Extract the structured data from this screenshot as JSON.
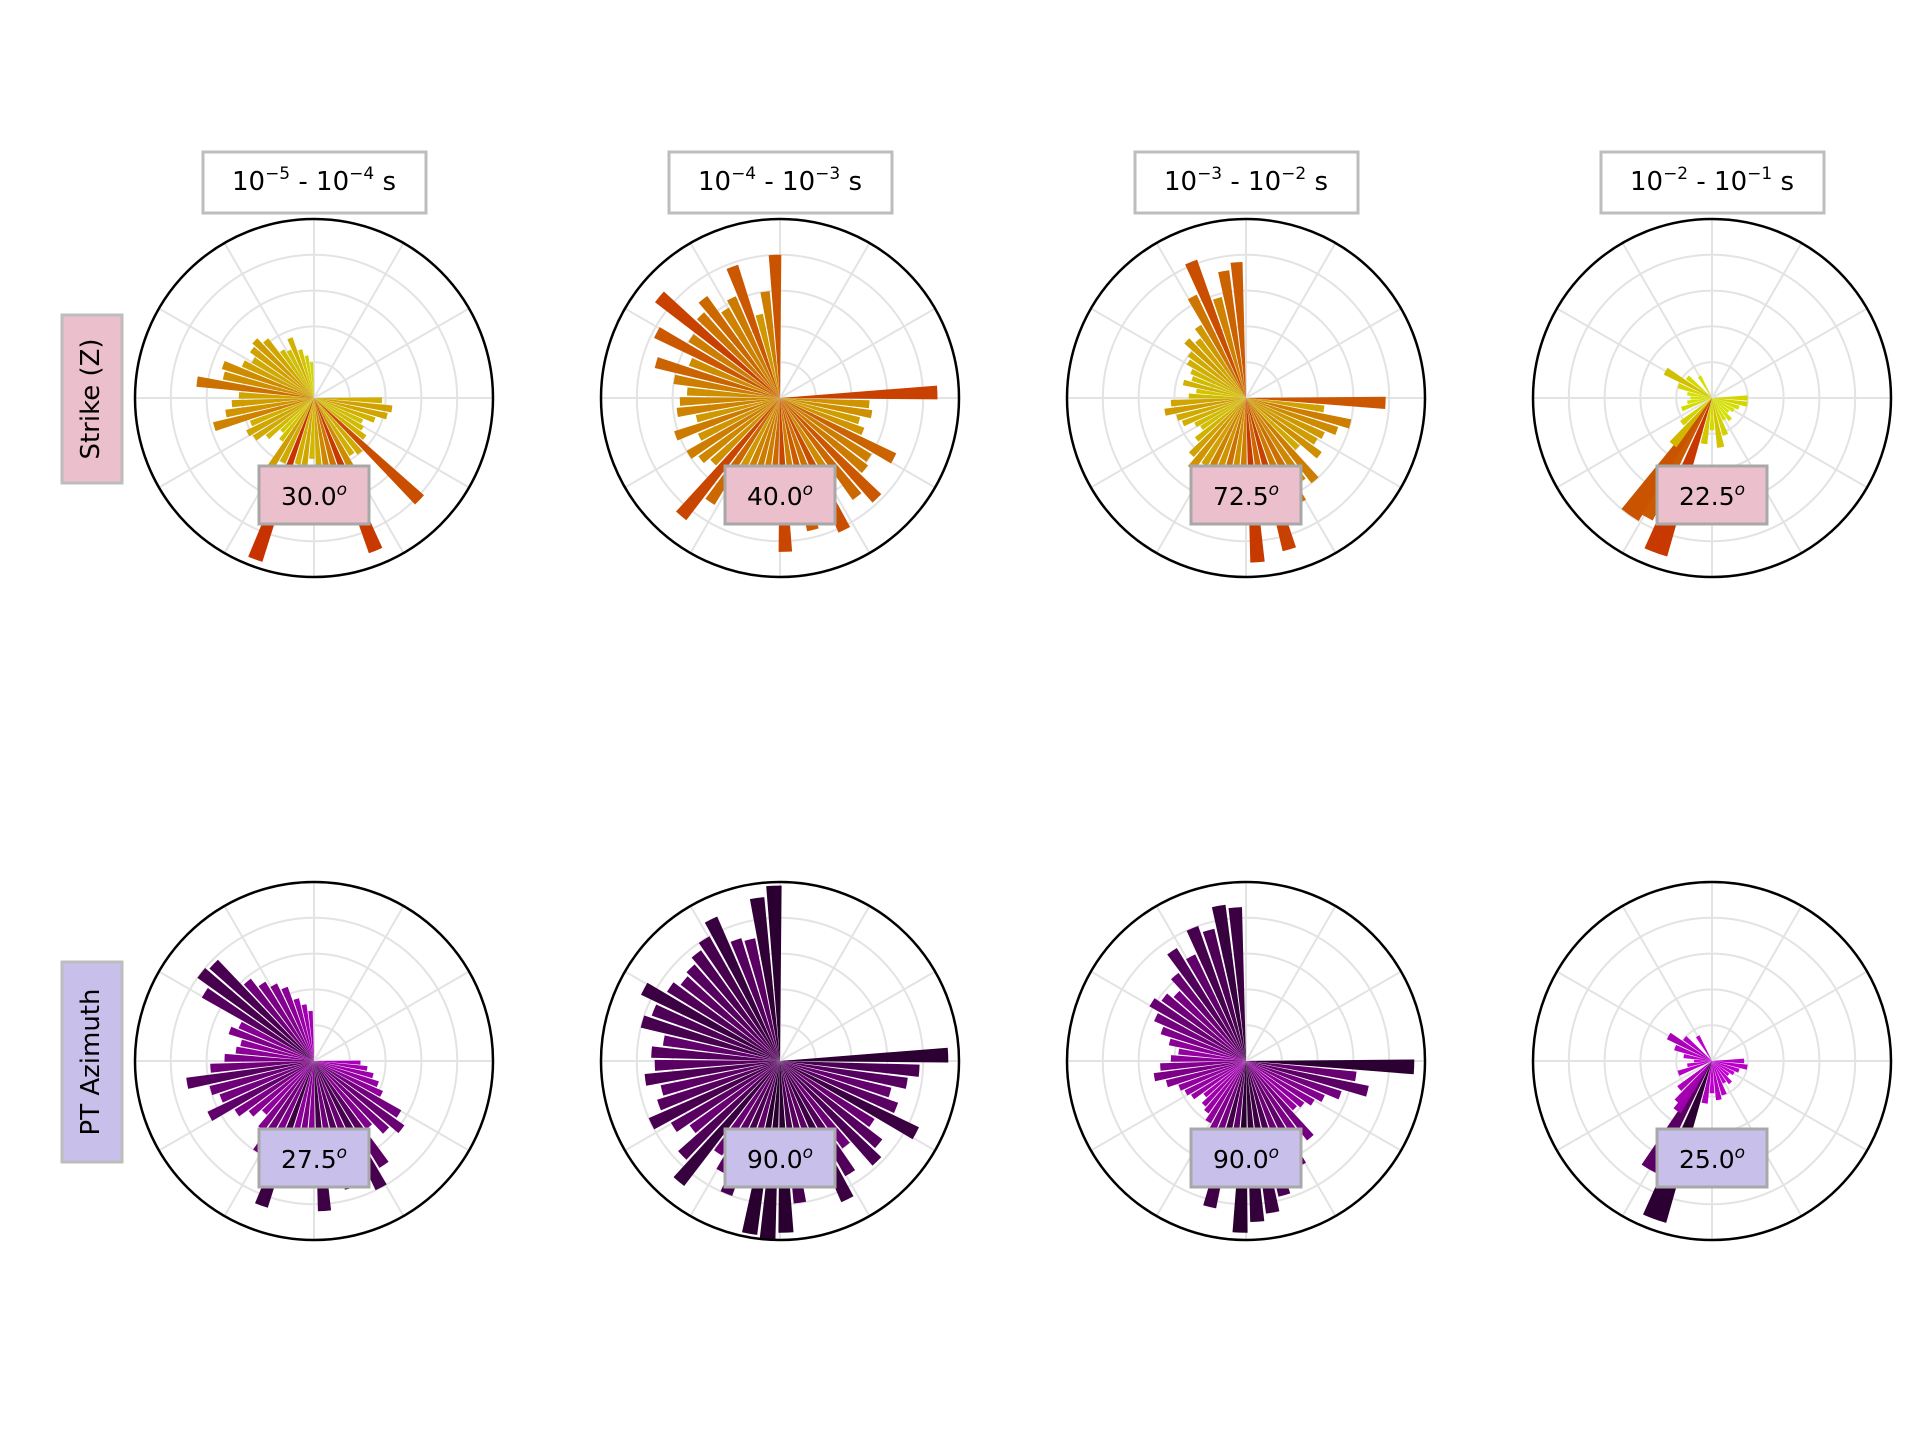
{
  "figure": {
    "column_titles": [
      {
        "base1": "10",
        "exp1": "−5",
        "sep": " - ",
        "base2": "10",
        "exp2": "−4",
        "unit": " s"
      },
      {
        "base1": "10",
        "exp1": "−4",
        "sep": " - ",
        "base2": "10",
        "exp2": "−3",
        "unit": " s"
      },
      {
        "base1": "10",
        "exp1": "−3",
        "sep": " - ",
        "base2": "10",
        "exp2": "−2",
        "unit": " s"
      },
      {
        "base1": "10",
        "exp1": "−2",
        "sep": " - ",
        "base2": "10",
        "exp2": "−1",
        "unit": " s"
      }
    ],
    "row_labels": [
      "Strike (Z)",
      "PT Azimuth"
    ],
    "colors": {
      "strike_label_bg": "#ebbfcc",
      "azimuth_label_bg": "#c8bfea",
      "strike_low": "#d4e000",
      "strike_high": "#c83200",
      "azimuth_low": "#c000d0",
      "azimuth_high": "#2a0030"
    }
  },
  "chart_data": [
    {
      "type": "rose",
      "row": "Strike (Z)",
      "period": "10^-5 - 10^-4 s",
      "median_label": "30.0",
      "median_unit": "o",
      "rmax": 1.0,
      "theta_deg": [
        92,
        98,
        104,
        110,
        116,
        122,
        128,
        134,
        140,
        146,
        152,
        158,
        164,
        170,
        176,
        182,
        188,
        194,
        200,
        206,
        212,
        218,
        224,
        230,
        236,
        242,
        248,
        254,
        260,
        266,
        272,
        278,
        284,
        290,
        296,
        302,
        308,
        314,
        320,
        326,
        332,
        338,
        344,
        350,
        356
      ],
      "values": [
        0.38,
        0.44,
        0.42,
        0.36,
        0.3,
        0.32,
        0.36,
        0.82,
        0.4,
        0.38,
        0.54,
        0.92,
        0.64,
        0.56,
        0.4,
        0.34,
        0.42,
        0.38,
        0.96,
        0.4,
        0.46,
        0.3,
        0.26,
        0.34,
        0.4,
        0.42,
        0.38,
        0.58,
        0.5,
        0.46,
        0.42,
        0.66,
        0.52,
        0.54,
        0.44,
        0.4,
        0.44,
        0.46,
        0.42,
        0.32,
        0.3,
        0.36,
        0.28,
        0.24,
        0.2
      ]
    },
    {
      "type": "rose",
      "row": "Strike (Z)",
      "period": "10^-4 - 10^-3 s",
      "median_label": "40.0",
      "median_unit": "o",
      "rmax": 1.0,
      "theta_deg": [
        88,
        94,
        100,
        106,
        112,
        118,
        124,
        130,
        136,
        142,
        148,
        154,
        160,
        166,
        172,
        178,
        184,
        190,
        196,
        202,
        208,
        214,
        220,
        226,
        232,
        238,
        244,
        250,
        256,
        262,
        268,
        274,
        280,
        286,
        292,
        298,
        304,
        310,
        316,
        322,
        328,
        334,
        340,
        346,
        352,
        358
      ],
      "values": [
        0.88,
        0.5,
        0.52,
        0.46,
        0.5,
        0.72,
        0.6,
        0.62,
        0.78,
        0.7,
        0.54,
        0.82,
        0.66,
        0.76,
        0.6,
        0.86,
        0.7,
        0.6,
        0.62,
        0.58,
        0.48,
        0.7,
        0.86,
        0.52,
        0.56,
        0.6,
        0.5,
        0.62,
        0.48,
        0.58,
        0.56,
        0.52,
        0.6,
        0.72,
        0.54,
        0.78,
        0.6,
        0.88,
        0.64,
        0.7,
        0.58,
        0.62,
        0.78,
        0.48,
        0.6,
        0.8
      ]
    },
    {
      "type": "rose",
      "row": "Strike (Z)",
      "period": "10^-3 - 10^-2 s",
      "median_label": "72.5",
      "median_unit": "o",
      "rmax": 1.0,
      "theta_deg": [
        92,
        98,
        104,
        110,
        116,
        122,
        128,
        134,
        140,
        146,
        152,
        158,
        164,
        170,
        176,
        182,
        188,
        194,
        200,
        206,
        212,
        218,
        224,
        230,
        236,
        242,
        248,
        254,
        260,
        266,
        272,
        278,
        284,
        290,
        296,
        302,
        308,
        314,
        320,
        326,
        332,
        338,
        344,
        350,
        356
      ],
      "values": [
        0.78,
        0.44,
        0.6,
        0.54,
        0.48,
        0.46,
        0.52,
        0.4,
        0.6,
        0.56,
        0.66,
        0.62,
        0.88,
        0.7,
        0.92,
        0.6,
        0.52,
        0.66,
        0.5,
        0.58,
        0.44,
        0.5,
        0.44,
        0.36,
        0.3,
        0.32,
        0.38,
        0.4,
        0.46,
        0.42,
        0.32,
        0.28,
        0.36,
        0.32,
        0.34,
        0.38,
        0.4,
        0.46,
        0.42,
        0.48,
        0.64,
        0.82,
        0.58,
        0.72,
        0.76
      ]
    },
    {
      "type": "rose",
      "row": "Strike (Z)",
      "period": "10^-2 - 10^-1 s",
      "median_label": "22.5",
      "median_unit": "o",
      "rmax": 1.0,
      "theta_deg": [
        90,
        100,
        110,
        120,
        130,
        140,
        150,
        160,
        170,
        180,
        190,
        200,
        210,
        215,
        220,
        230,
        250,
        260,
        270,
        280,
        290,
        300,
        310,
        330
      ],
      "values": [
        0.2,
        0.2,
        0.16,
        0.14,
        0.12,
        0.16,
        0.14,
        0.22,
        0.28,
        0.18,
        0.26,
        0.92,
        0.76,
        0.8,
        0.34,
        0.22,
        0.18,
        0.14,
        0.12,
        0.14,
        0.2,
        0.3,
        0.18,
        0.14
      ]
    },
    {
      "type": "rose",
      "row": "PT Azimuth",
      "period": "10^-5 - 10^-4 s",
      "median_label": "27.5",
      "median_unit": "o",
      "rmax": 1.0,
      "theta_deg": [
        92,
        98,
        104,
        110,
        116,
        122,
        128,
        134,
        140,
        146,
        152,
        158,
        164,
        170,
        176,
        182,
        188,
        194,
        200,
        206,
        212,
        218,
        224,
        230,
        236,
        242,
        248,
        254,
        260,
        266,
        272,
        278,
        284,
        290,
        296,
        302,
        308,
        314,
        320,
        326,
        332,
        338,
        344,
        350,
        356
      ],
      "values": [
        0.26,
        0.3,
        0.34,
        0.38,
        0.42,
        0.56,
        0.62,
        0.56,
        0.48,
        0.7,
        0.8,
        0.62,
        0.74,
        0.58,
        0.84,
        0.46,
        0.52,
        0.42,
        0.86,
        0.5,
        0.6,
        0.48,
        0.4,
        0.46,
        0.52,
        0.66,
        0.56,
        0.6,
        0.72,
        0.58,
        0.5,
        0.44,
        0.42,
        0.5,
        0.46,
        0.72,
        0.8,
        0.78,
        0.58,
        0.52,
        0.48,
        0.44,
        0.36,
        0.32,
        0.28
      ]
    },
    {
      "type": "rose",
      "row": "PT Azimuth",
      "period": "10^-4 - 10^-3 s",
      "median_label": "90.0",
      "median_unit": "o",
      "rmax": 1.0,
      "theta_deg": [
        88,
        94,
        100,
        106,
        112,
        118,
        124,
        130,
        136,
        142,
        148,
        154,
        160,
        166,
        172,
        178,
        184,
        190,
        196,
        202,
        208,
        214,
        220,
        226,
        232,
        238,
        244,
        250,
        256,
        262,
        268,
        274,
        280,
        286,
        292,
        298,
        304,
        310,
        316,
        322,
        328,
        334,
        340,
        346,
        352,
        358
      ],
      "values": [
        0.94,
        0.78,
        0.72,
        0.64,
        0.7,
        0.86,
        0.62,
        0.72,
        0.78,
        0.6,
        0.74,
        0.86,
        0.68,
        0.72,
        0.8,
        0.96,
        1.0,
        0.98,
        0.66,
        0.8,
        0.7,
        0.62,
        0.88,
        0.76,
        0.62,
        0.7,
        0.8,
        0.72,
        0.68,
        0.76,
        0.7,
        0.72,
        0.66,
        0.8,
        0.76,
        0.86,
        0.74,
        0.7,
        0.72,
        0.76,
        0.8,
        0.88,
        0.72,
        0.7,
        0.92,
        0.98
      ]
    },
    {
      "type": "rose",
      "row": "PT Azimuth",
      "period": "10^-3 - 10^-2 s",
      "median_label": "90.0",
      "median_unit": "o",
      "rmax": 1.0,
      "theta_deg": [
        92,
        98,
        104,
        110,
        116,
        122,
        128,
        134,
        140,
        146,
        152,
        158,
        164,
        170,
        176,
        182,
        188,
        194,
        200,
        206,
        212,
        218,
        224,
        230,
        236,
        242,
        248,
        254,
        260,
        266,
        272,
        278,
        284,
        290,
        296,
        302,
        308,
        314,
        320,
        326,
        332,
        338,
        344,
        350,
        356
      ],
      "values": [
        0.94,
        0.62,
        0.7,
        0.56,
        0.48,
        0.44,
        0.4,
        0.38,
        0.56,
        0.52,
        0.66,
        0.6,
        0.78,
        0.86,
        0.9,
        0.96,
        0.66,
        0.84,
        0.56,
        0.5,
        0.4,
        0.36,
        0.34,
        0.3,
        0.36,
        0.38,
        0.4,
        0.46,
        0.52,
        0.48,
        0.42,
        0.38,
        0.44,
        0.5,
        0.56,
        0.62,
        0.58,
        0.54,
        0.62,
        0.74,
        0.66,
        0.8,
        0.76,
        0.88,
        0.86
      ]
    },
    {
      "type": "rose",
      "row": "PT Azimuth",
      "period": "10^-2 - 10^-1 s",
      "median_label": "25.0",
      "median_unit": "o",
      "rmax": 1.0,
      "theta_deg": [
        90,
        100,
        110,
        120,
        130,
        140,
        150,
        160,
        170,
        180,
        190,
        200,
        210,
        215,
        220,
        230,
        250,
        260,
        270,
        280,
        290,
        300,
        310,
        330
      ],
      "values": [
        0.18,
        0.2,
        0.16,
        0.14,
        0.12,
        0.16,
        0.14,
        0.2,
        0.22,
        0.18,
        0.24,
        0.94,
        0.7,
        0.34,
        0.3,
        0.24,
        0.2,
        0.14,
        0.1,
        0.16,
        0.22,
        0.28,
        0.2,
        0.16
      ]
    }
  ]
}
